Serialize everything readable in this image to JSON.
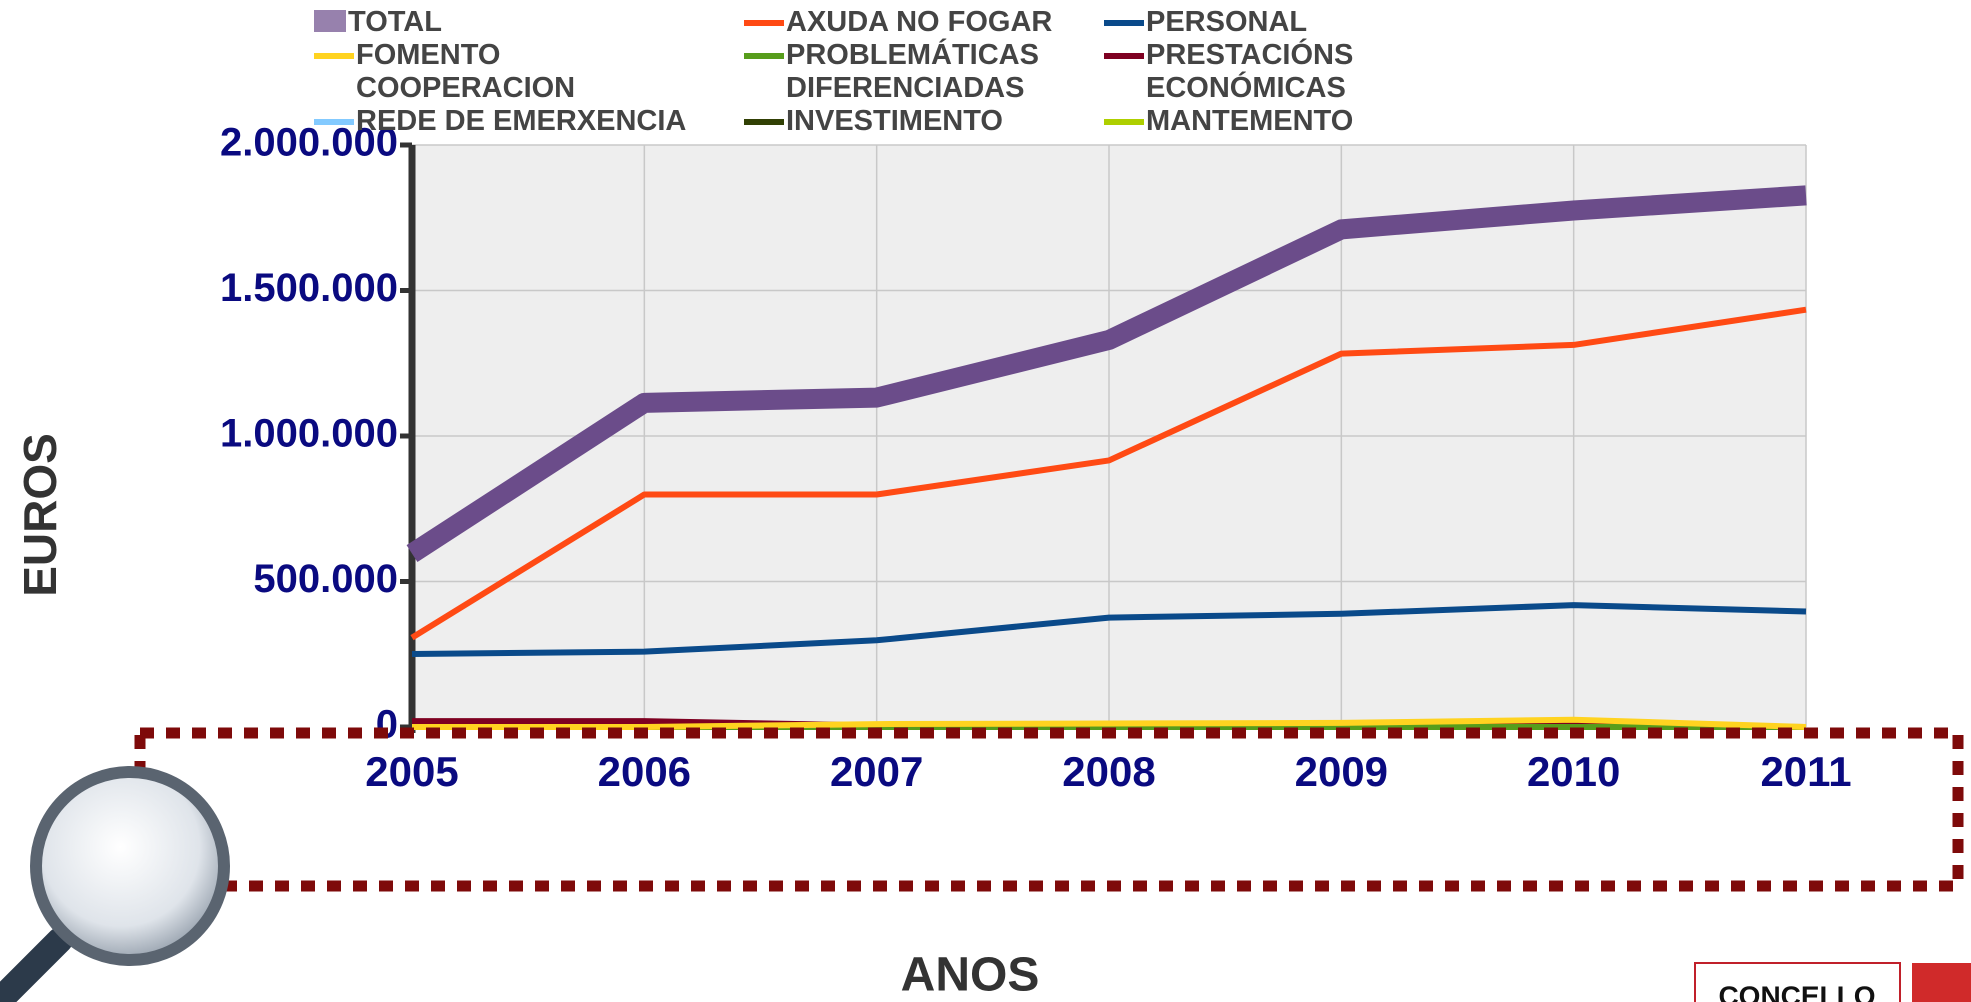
{
  "chart_data": {
    "type": "line",
    "y_label": "EUROS",
    "x_label": "ANOS",
    "logo": "CONCELLO",
    "categories": [
      "2005",
      "2006",
      "2007",
      "2008",
      "2009",
      "2010",
      "2011"
    ],
    "ylim": [
      0,
      2000000
    ],
    "yticks": [
      0,
      {
        "value": 500000,
        "label": "500.000"
      },
      {
        "value": 1000000,
        "label": "1.000.000"
      },
      {
        "value": 1500000,
        "label": "1.500.000"
      },
      {
        "value": 2000000,
        "label": "2.000.000"
      }
    ],
    "grid": true,
    "series": [
      {
        "name": "TOTAL",
        "color": "#6b4c8a",
        "values": [
          596000,
          1114000,
          1132000,
          1330000,
          1710000,
          1775000,
          1827000
        ]
      },
      {
        "name": "AXUDA NO FOGAR",
        "color": "#ff4a14",
        "values": [
          307000,
          799000,
          799000,
          916000,
          1283000,
          1313000,
          1434000
        ]
      },
      {
        "name": "PERSONAL",
        "color": "#0a4a8a",
        "values": [
          251000,
          259000,
          298000,
          376000,
          389000,
          419000,
          397000
        ]
      },
      {
        "name": "FOMENTO COOPERACION",
        "color": "#ffd320",
        "values": [
          0,
          0,
          10000,
          12000,
          14000,
          25000,
          0
        ]
      },
      {
        "name": "PROBLEMÁTICAS DIFERENCIADAS",
        "color": "#579d1c",
        "values": [
          0,
          0,
          0,
          0,
          0,
          0,
          0
        ]
      },
      {
        "name": "PRESTACIÓNS ECONÓMICAS",
        "color": "#7e0021",
        "values": [
          20000,
          20000,
          5000,
          5000,
          5000,
          5000,
          0
        ]
      },
      {
        "name": "REDE DE EMERXENCIA",
        "color": "#83caff",
        "values": [
          0,
          0,
          0,
          0,
          0,
          0,
          0
        ]
      },
      {
        "name": "INVESTIMENTO",
        "color": "#314004",
        "values": [
          0,
          0,
          0,
          0,
          0,
          0,
          0
        ]
      },
      {
        "name": "MANTEMENTO",
        "color": "#aecf00",
        "values": [
          0,
          0,
          0,
          0,
          0,
          0,
          0
        ]
      }
    ]
  }
}
